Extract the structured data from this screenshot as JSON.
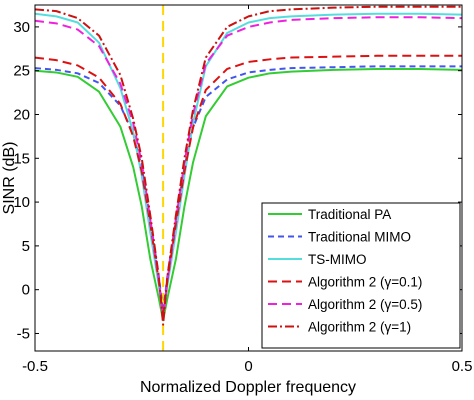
{
  "chart_data": {
    "type": "line",
    "xlabel": "Normalized Doppler frequency",
    "ylabel": "SINR (dB)",
    "xlim": [
      -0.5,
      0.5
    ],
    "ylim": [
      -7,
      32.5
    ],
    "xticks": [
      -0.5,
      0,
      0.5
    ],
    "xtick_labels": [
      "-0.5",
      "0",
      "0.5"
    ],
    "yticks": [
      -5,
      0,
      5,
      10,
      15,
      20,
      25,
      30
    ],
    "ytick_labels": [
      "-5",
      "0",
      "5",
      "10",
      "15",
      "20",
      "25",
      "30"
    ],
    "grid": false,
    "legend_position": "lower-right",
    "marker_x": -0.2,
    "marker_color": "#ffd700",
    "x": [
      -0.5,
      -0.45,
      -0.4,
      -0.35,
      -0.3,
      -0.27,
      -0.25,
      -0.23,
      -0.21,
      -0.2,
      -0.19,
      -0.17,
      -0.15,
      -0.13,
      -0.1,
      -0.05,
      0,
      0.05,
      0.1,
      0.2,
      0.3,
      0.4,
      0.5
    ],
    "series": [
      {
        "name": "Traditional PA",
        "color": "#33cc33",
        "dash": "solid",
        "values": [
          25.0,
          24.8,
          24.3,
          22.6,
          18.6,
          14.0,
          9.5,
          3.5,
          -1.0,
          -3.5,
          -1.0,
          3.5,
          9.5,
          14.5,
          19.8,
          23.2,
          24.2,
          24.7,
          24.9,
          25.1,
          25.2,
          25.2,
          25.1
        ]
      },
      {
        "name": "Traditional MIMO",
        "color": "#4455ee",
        "dash": "6,4",
        "values": [
          25.3,
          25.1,
          24.7,
          23.6,
          21.0,
          17.8,
          14.0,
          8.0,
          1.5,
          -2.5,
          1.5,
          8.0,
          14.0,
          18.5,
          22.0,
          24.0,
          24.8,
          25.1,
          25.3,
          25.4,
          25.5,
          25.5,
          25.5
        ]
      },
      {
        "name": "TS-MIMO",
        "color": "#55dddd",
        "dash": "solid",
        "values": [
          31.5,
          31.2,
          30.5,
          28.2,
          23.0,
          18.0,
          13.0,
          6.5,
          0.5,
          -3.0,
          0.5,
          6.5,
          13.0,
          19.0,
          25.5,
          29.3,
          30.5,
          31.0,
          31.2,
          31.4,
          31.5,
          31.5,
          31.4
        ]
      },
      {
        "name": "Algorithm 2 (γ=0.1)",
        "color": "#dd1111",
        "dash": "9,5",
        "values": [
          26.5,
          26.2,
          25.6,
          24.2,
          21.2,
          17.5,
          13.5,
          7.5,
          1.0,
          -3.0,
          1.0,
          7.5,
          13.5,
          18.5,
          22.8,
          25.2,
          26.0,
          26.3,
          26.5,
          26.6,
          26.7,
          26.7,
          26.7
        ]
      },
      {
        "name": "Algorithm 2 (γ=0.5)",
        "color": "#ee22dd",
        "dash": "9,5",
        "values": [
          30.7,
          30.4,
          29.7,
          27.8,
          23.5,
          19.0,
          14.5,
          8.0,
          1.0,
          -3.3,
          1.0,
          8.0,
          14.5,
          20.0,
          25.8,
          29.0,
          30.0,
          30.5,
          30.8,
          31.0,
          31.1,
          31.1,
          31.0
        ]
      },
      {
        "name": "Algorithm 2 (γ=1)",
        "color": "#cc1111",
        "dash": "9,3,2,3",
        "values": [
          32.0,
          31.8,
          31.0,
          29.0,
          24.5,
          19.5,
          15.0,
          8.5,
          1.5,
          -4.0,
          1.5,
          8.5,
          15.0,
          20.5,
          26.5,
          30.0,
          31.2,
          31.8,
          32.0,
          32.2,
          32.3,
          32.3,
          32.3
        ]
      }
    ]
  }
}
